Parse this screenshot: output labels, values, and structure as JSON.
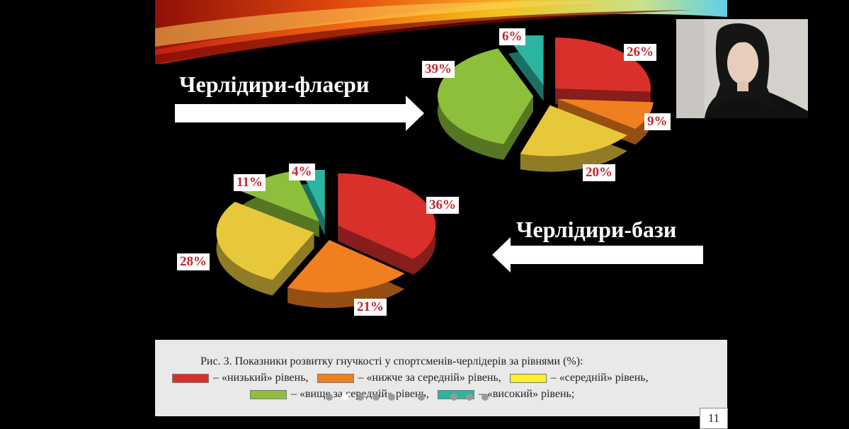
{
  "slide": {
    "title_flyers": "Черлідири-флаєри",
    "title_bases": "Черлідири-бази",
    "page_number": "11"
  },
  "caption": {
    "line1": "Рис. 3. Показники розвитку гнучкості у спортсменів-черлідерів за рівнями (%):",
    "low": "– «низький» рівень,",
    "below_avg": "– «нижче за середній» рівень,",
    "avg": "– «середній» рівень,",
    "above_avg": "– «вище за середній» рівень,",
    "high": "– «високий» рівень;"
  },
  "colors": {
    "low": "#d9302c",
    "below_avg": "#f07f1f",
    "avg": "#e8c83b",
    "above_avg": "#8dbf3a",
    "high": "#2bb5a0"
  },
  "chart_data": [
    {
      "type": "pie",
      "title": "Черлідири-флаєри",
      "categories": [
        "«низький»",
        "«нижче за середній»",
        "«середній»",
        "«вище за середній»",
        "«високий»"
      ],
      "values": [
        26,
        9,
        20,
        39,
        6
      ],
      "labels": [
        "26%",
        "9%",
        "20%",
        "39%",
        "6%"
      ]
    },
    {
      "type": "pie",
      "title": "Черлідири-бази",
      "categories": [
        "«низький»",
        "«нижче за середній»",
        "«середній»",
        "«вище за середній»",
        "«високий»"
      ],
      "values": [
        36,
        21,
        28,
        11,
        4
      ],
      "labels": [
        "36%",
        "21%",
        "28%",
        "11%",
        "4%"
      ]
    }
  ]
}
